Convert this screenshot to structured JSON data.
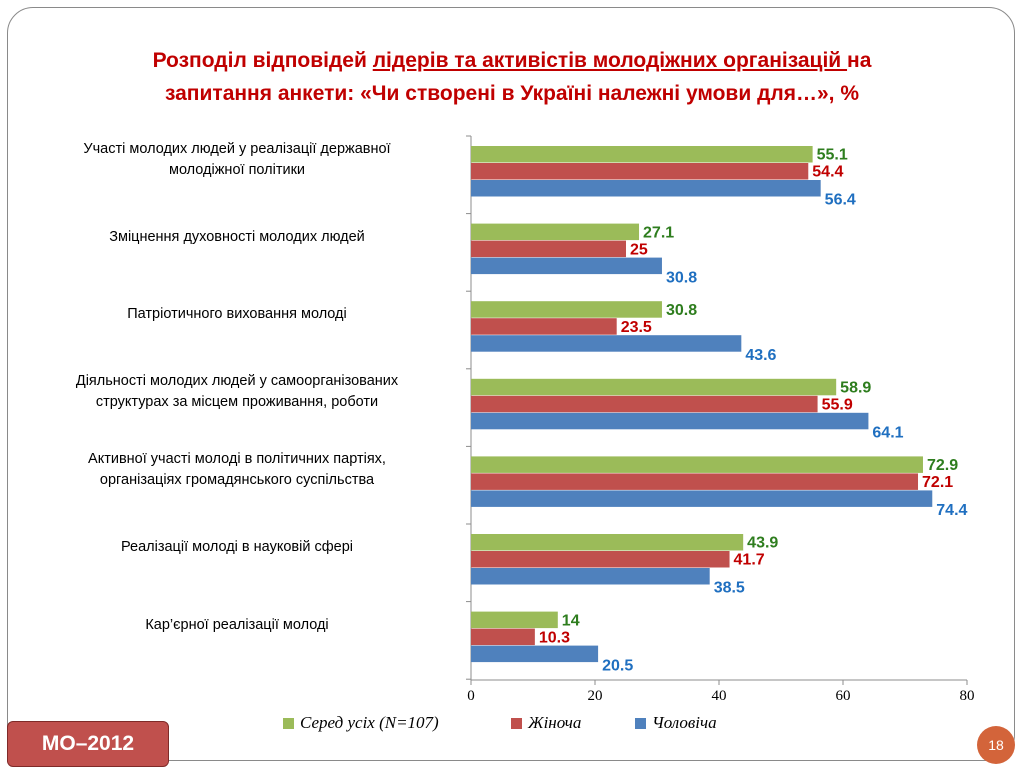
{
  "title": {
    "part1": "Розподіл відповідей ",
    "underlined": "лідерів та активістів молодіжних організацій ",
    "part2": " на",
    "line2": "запитання анкети: «Чи створені в Україні належні умови для…», %"
  },
  "badge": "МО–2012",
  "page_number": "18",
  "chart_data": {
    "type": "bar",
    "orientation": "horizontal",
    "categories": [
      [
        "Участі молодих людей у реалізації державної",
        "молодіжної політики"
      ],
      [
        "Зміцнення духовності молодих людей"
      ],
      [
        "Патріотичного виховання молоді"
      ],
      [
        "Діяльності молодих людей у самоорганізованих",
        "структурах за місцем проживання, роботи"
      ],
      [
        "Активної участі молоді в політичних партіях,",
        "організаціях громадянського суспільства"
      ],
      [
        "Реалізації молоді в науковій сфері"
      ],
      [
        "Кар’єрної реалізації молоді"
      ]
    ],
    "series": [
      {
        "name": "Серед усіх (N=107)",
        "color": "#9bbb59",
        "label_color": "#2e7d1e",
        "values": [
          "55.1",
          "27.1",
          "30.8",
          "58.9",
          "72.9",
          "43.9",
          "14"
        ]
      },
      {
        "name": "Жіноча",
        "color": "#c0504d",
        "label_color": "#c00000",
        "values": [
          "54.4",
          "25",
          "23.5",
          "55.9",
          "72.1",
          "41.7",
          "10.3"
        ]
      },
      {
        "name": "Чоловіча",
        "color": "#4f81bd",
        "label_color": "#1f6fc0",
        "values": [
          "56.4",
          "30.8",
          "43.6",
          "64.1",
          "74.4",
          "38.5",
          "20.5"
        ]
      }
    ],
    "xlim": [
      0,
      80
    ],
    "xticks": [
      "0",
      "20",
      "40",
      "60",
      "80"
    ],
    "grid": false,
    "legend_position": "bottom"
  }
}
